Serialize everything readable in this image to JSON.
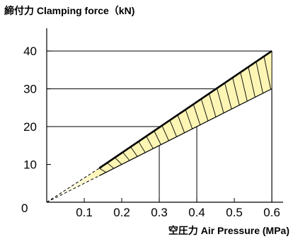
{
  "chart_data": {
    "type": "line",
    "ylabel": "締付力 Clamping force（kN)",
    "xlabel": "空圧力 Air Pressure (MPa)",
    "origin_label": "0",
    "x_ticks": [
      "0.1",
      "0.2",
      "0.3",
      "0.4",
      "0.5",
      "0.6"
    ],
    "y_ticks": [
      "10",
      "20",
      "30",
      "40"
    ],
    "xlim": [
      0,
      0.63
    ],
    "ylim": [
      0,
      46
    ],
    "grid": false,
    "band_upper": {
      "x": [
        0.14,
        0.6
      ],
      "y": [
        9,
        40
      ]
    },
    "band_lower": {
      "x": [
        0.14,
        0.6
      ],
      "y": [
        7,
        30
      ]
    },
    "extrapolation": {
      "x": [
        0.0,
        0.14
      ],
      "y_upper": [
        0,
        9
      ],
      "y_lower": [
        0,
        7
      ]
    },
    "reference_lines": [
      {
        "pressure": 0.3,
        "force": 20
      },
      {
        "pressure": 0.4,
        "force": 20
      },
      {
        "pressure": 0.6,
        "force": 30
      },
      {
        "pressure": 0.6,
        "force": 40
      }
    ],
    "colors": {
      "band_fill": "#fdf5b4",
      "line": "#000000",
      "fade_fill": "#fffbe0"
    }
  }
}
